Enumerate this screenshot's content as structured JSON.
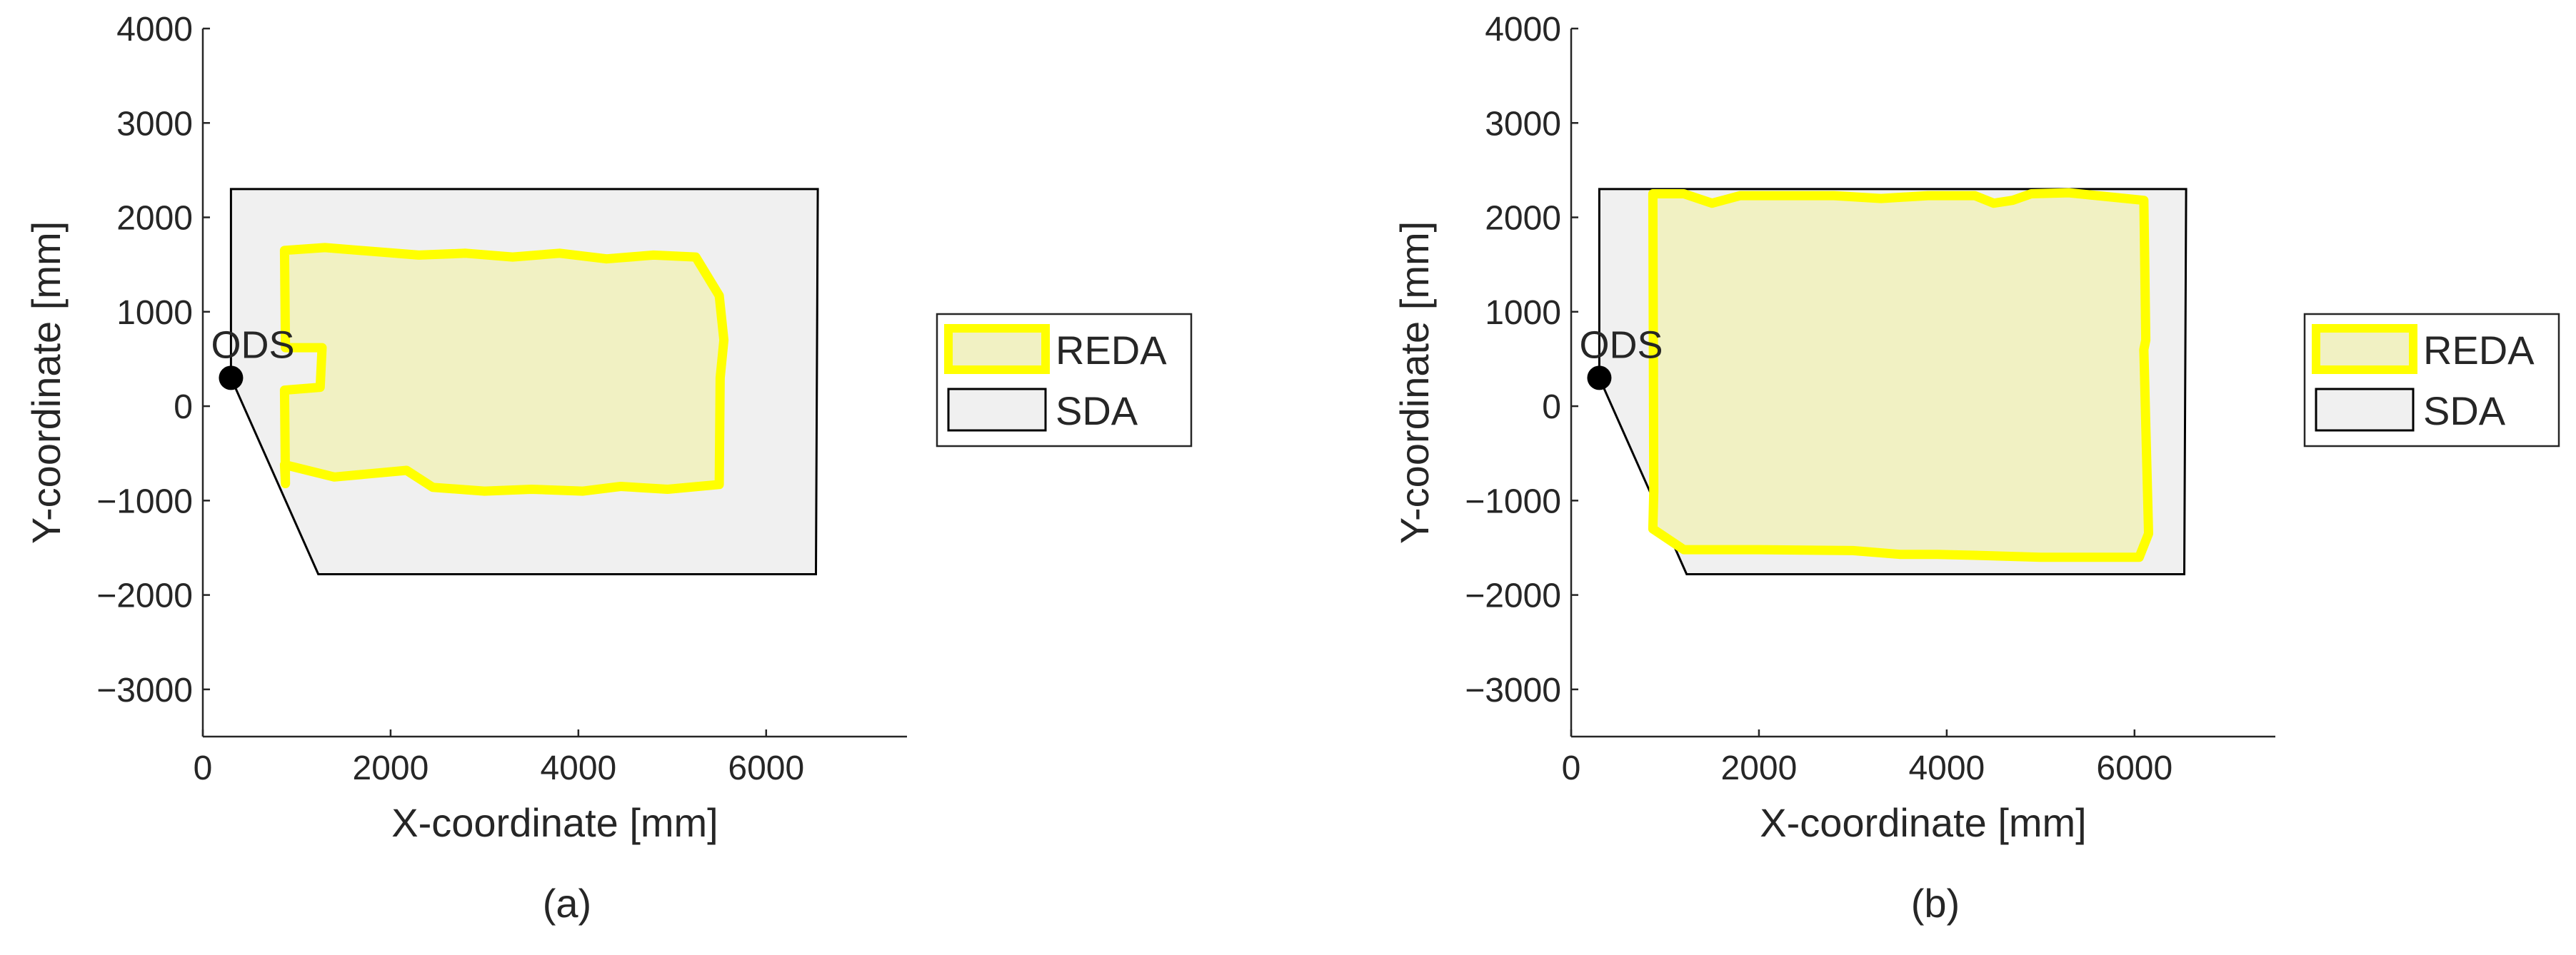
{
  "chart_data": [
    {
      "type": "area",
      "panel_label": "(a)",
      "xlabel": "X-coordinate [mm]",
      "ylabel": "Y-coordinate [mm]",
      "xlim": [
        0,
        7500
      ],
      "ylim": [
        -3500,
        4000
      ],
      "xticks": [
        0,
        2000,
        4000,
        6000
      ],
      "yticks": [
        -3000,
        -2000,
        -1000,
        0,
        1000,
        2000,
        3000,
        4000
      ],
      "grid": false,
      "legend": {
        "placement": "outside-right",
        "entries": [
          "REDA",
          "SDA"
        ]
      },
      "sda_polygon": [
        [
          300,
          2300
        ],
        [
          6550,
          2300
        ],
        [
          6530,
          -1780
        ],
        [
          1230,
          -1780
        ],
        [
          300,
          300
        ]
      ],
      "reda_polygon": [
        [
          870,
          1650
        ],
        [
          1300,
          1680
        ],
        [
          2300,
          1600
        ],
        [
          2800,
          1620
        ],
        [
          3300,
          1580
        ],
        [
          3800,
          1620
        ],
        [
          4300,
          1560
        ],
        [
          4800,
          1600
        ],
        [
          5250,
          1580
        ],
        [
          5500,
          1170
        ],
        [
          5550,
          700
        ],
        [
          5510,
          300
        ],
        [
          5500,
          -830
        ],
        [
          4950,
          -880
        ],
        [
          4450,
          -850
        ],
        [
          4050,
          -900
        ],
        [
          3500,
          -880
        ],
        [
          3000,
          -900
        ],
        [
          2450,
          -860
        ],
        [
          2170,
          -680
        ],
        [
          1400,
          -750
        ],
        [
          870,
          -620
        ],
        [
          880,
          -820
        ],
        [
          870,
          170
        ],
        [
          1250,
          200
        ],
        [
          1270,
          620
        ],
        [
          880,
          620
        ]
      ],
      "ods_point": {
        "label": "ODS",
        "x": 300,
        "y": 300
      },
      "colors": {
        "reda_edge": "#ffff00",
        "reda_fill": "#f1f1c3",
        "sda_fill": "#f0f0f0",
        "sda_edge": "#000000",
        "ods": "#000000"
      }
    },
    {
      "type": "area",
      "panel_label": "(b)",
      "xlabel": "X-coordinate [mm]",
      "ylabel": "Y-coordinate [mm]",
      "xlim": [
        0,
        7500
      ],
      "ylim": [
        -3500,
        4000
      ],
      "xticks": [
        0,
        2000,
        4000,
        6000
      ],
      "yticks": [
        -3000,
        -2000,
        -1000,
        0,
        1000,
        2000,
        3000,
        4000
      ],
      "grid": false,
      "legend": {
        "placement": "outside-right",
        "entries": [
          "REDA",
          "SDA"
        ]
      },
      "sda_polygon": [
        [
          300,
          2300
        ],
        [
          6550,
          2300
        ],
        [
          6530,
          -1780
        ],
        [
          1230,
          -1780
        ],
        [
          300,
          300
        ]
      ],
      "reda_polygon": [
        [
          870,
          2250
        ],
        [
          1200,
          2250
        ],
        [
          1500,
          2150
        ],
        [
          1800,
          2230
        ],
        [
          2800,
          2230
        ],
        [
          3300,
          2200
        ],
        [
          3800,
          2230
        ],
        [
          4300,
          2230
        ],
        [
          4500,
          2150
        ],
        [
          4700,
          2180
        ],
        [
          4900,
          2250
        ],
        [
          5300,
          2260
        ],
        [
          6100,
          2180
        ],
        [
          6120,
          700
        ],
        [
          6100,
          600
        ],
        [
          6150,
          -1350
        ],
        [
          6050,
          -1600
        ],
        [
          5000,
          -1600
        ],
        [
          4300,
          -1580
        ],
        [
          3900,
          -1570
        ],
        [
          3500,
          -1570
        ],
        [
          3000,
          -1530
        ],
        [
          2000,
          -1520
        ],
        [
          1200,
          -1520
        ],
        [
          870,
          -1300
        ],
        [
          880,
          -900
        ]
      ],
      "ods_point": {
        "label": "ODS",
        "x": 300,
        "y": 300
      },
      "colors": {
        "reda_edge": "#ffff00",
        "reda_fill": "#f1f1c3",
        "sda_fill": "#f0f0f0",
        "sda_edge": "#000000",
        "ods": "#000000"
      }
    }
  ]
}
